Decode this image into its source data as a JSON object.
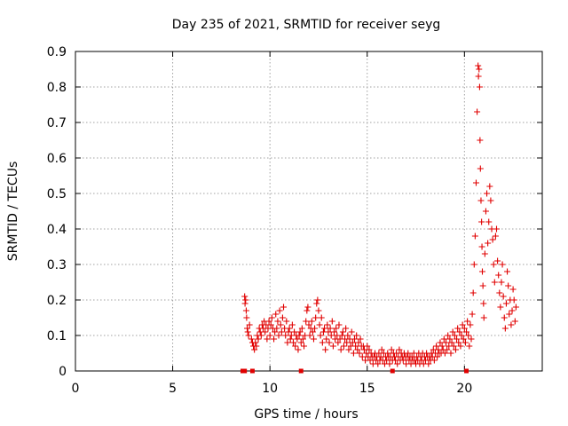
{
  "chart_data": {
    "type": "scatter",
    "title": "Day 235 of 2021, SRMTID for receiver seyg",
    "xlabel": "GPS time / hours",
    "ylabel": "SRMTID / TECUs",
    "xlim": [
      0,
      24
    ],
    "ylim": [
      0,
      0.9
    ],
    "xticks": [
      "0",
      "5",
      "10",
      "15",
      "20"
    ],
    "xtick_values": [
      0,
      5,
      10,
      15,
      20
    ],
    "yticks": [
      "0",
      "0.1",
      "0.2",
      "0.3",
      "0.4",
      "0.5",
      "0.6",
      "0.7",
      "0.8",
      "0.9"
    ],
    "ytick_values": [
      0,
      0.1,
      0.2,
      0.3,
      0.4,
      0.5,
      0.6,
      0.7,
      0.8,
      0.9
    ],
    "grid": true,
    "marker": "plus",
    "color": "#e00000",
    "series": [
      {
        "name": "SRMTID",
        "points": [
          [
            8.7,
            0.21
          ],
          [
            8.72,
            0.19
          ],
          [
            8.75,
            0.2
          ],
          [
            8.78,
            0.17
          ],
          [
            8.8,
            0.15
          ],
          [
            8.83,
            0.12
          ],
          [
            8.86,
            0.11
          ],
          [
            8.9,
            0.1
          ],
          [
            8.95,
            0.13
          ],
          [
            9.05,
            0.09
          ],
          [
            9.1,
            0.08
          ],
          [
            9.15,
            0.07
          ],
          [
            9.2,
            0.06
          ],
          [
            9.25,
            0.08
          ],
          [
            9.3,
            0.07
          ],
          [
            9.35,
            0.1
          ],
          [
            9.4,
            0.09
          ],
          [
            9.45,
            0.12
          ],
          [
            9.5,
            0.11
          ],
          [
            9.55,
            0.1
          ],
          [
            9.6,
            0.13
          ],
          [
            9.65,
            0.12
          ],
          [
            9.7,
            0.14
          ],
          [
            9.75,
            0.11
          ],
          [
            9.8,
            0.13
          ],
          [
            9.85,
            0.09
          ],
          [
            9.9,
            0.12
          ],
          [
            9.95,
            0.14
          ],
          [
            10.0,
            0.1
          ],
          [
            10.05,
            0.13
          ],
          [
            10.1,
            0.15
          ],
          [
            10.15,
            0.12
          ],
          [
            10.2,
            0.09
          ],
          [
            10.25,
            0.11
          ],
          [
            10.3,
            0.16
          ],
          [
            10.35,
            0.12
          ],
          [
            10.4,
            0.14
          ],
          [
            10.45,
            0.1
          ],
          [
            10.5,
            0.17
          ],
          [
            10.55,
            0.13
          ],
          [
            10.6,
            0.11
          ],
          [
            10.65,
            0.15
          ],
          [
            10.7,
            0.18
          ],
          [
            10.75,
            0.12
          ],
          [
            10.8,
            0.1
          ],
          [
            10.85,
            0.14
          ],
          [
            10.9,
            0.08
          ],
          [
            10.95,
            0.11
          ],
          [
            11.0,
            0.12
          ],
          [
            11.05,
            0.09
          ],
          [
            11.1,
            0.1
          ],
          [
            11.15,
            0.13
          ],
          [
            11.2,
            0.08
          ],
          [
            11.25,
            0.11
          ],
          [
            11.3,
            0.07
          ],
          [
            11.35,
            0.1
          ],
          [
            11.4,
            0.09
          ],
          [
            11.45,
            0.06
          ],
          [
            11.5,
            0.1
          ],
          [
            11.55,
            0.11
          ],
          [
            11.6,
            0.08
          ],
          [
            11.65,
            0.12
          ],
          [
            11.7,
            0.09
          ],
          [
            11.75,
            0.07
          ],
          [
            11.8,
            0.1
          ],
          [
            11.85,
            0.14
          ],
          [
            11.9,
            0.17
          ],
          [
            11.95,
            0.18
          ],
          [
            12.0,
            0.13
          ],
          [
            12.05,
            0.1
          ],
          [
            12.1,
            0.12
          ],
          [
            12.15,
            0.14
          ],
          [
            12.2,
            0.11
          ],
          [
            12.25,
            0.09
          ],
          [
            12.3,
            0.12
          ],
          [
            12.35,
            0.15
          ],
          [
            12.4,
            0.19
          ],
          [
            12.45,
            0.2
          ],
          [
            12.5,
            0.17
          ],
          [
            12.55,
            0.13
          ],
          [
            12.6,
            0.1
          ],
          [
            12.65,
            0.15
          ],
          [
            12.7,
            0.08
          ],
          [
            12.75,
            0.11
          ],
          [
            12.8,
            0.12
          ],
          [
            12.85,
            0.06
          ],
          [
            12.9,
            0.09
          ],
          [
            12.95,
            0.13
          ],
          [
            13.0,
            0.11
          ],
          [
            13.05,
            0.08
          ],
          [
            13.1,
            0.12
          ],
          [
            13.15,
            0.1
          ],
          [
            13.2,
            0.14
          ],
          [
            13.25,
            0.07
          ],
          [
            13.3,
            0.11
          ],
          [
            13.35,
            0.09
          ],
          [
            13.4,
            0.12
          ],
          [
            13.45,
            0.1
          ],
          [
            13.5,
            0.08
          ],
          [
            13.55,
            0.13
          ],
          [
            13.6,
            0.09
          ],
          [
            13.65,
            0.06
          ],
          [
            13.7,
            0.1
          ],
          [
            13.75,
            0.11
          ],
          [
            13.8,
            0.07
          ],
          [
            13.85,
            0.09
          ],
          [
            13.9,
            0.12
          ],
          [
            13.95,
            0.08
          ],
          [
            14.0,
            0.1
          ],
          [
            14.05,
            0.06
          ],
          [
            14.1,
            0.09
          ],
          [
            14.15,
            0.07
          ],
          [
            14.2,
            0.11
          ],
          [
            14.25,
            0.08
          ],
          [
            14.3,
            0.05
          ],
          [
            14.35,
            0.09
          ],
          [
            14.4,
            0.07
          ],
          [
            14.45,
            0.1
          ],
          [
            14.5,
            0.06
          ],
          [
            14.55,
            0.08
          ],
          [
            14.6,
            0.05
          ],
          [
            14.65,
            0.09
          ],
          [
            14.7,
            0.07
          ],
          [
            14.75,
            0.04
          ],
          [
            14.8,
            0.07
          ],
          [
            14.85,
            0.06
          ],
          [
            14.9,
            0.03
          ],
          [
            14.95,
            0.05
          ],
          [
            15.0,
            0.07
          ],
          [
            15.05,
            0.04
          ],
          [
            15.1,
            0.06
          ],
          [
            15.15,
            0.03
          ],
          [
            15.2,
            0.05
          ],
          [
            15.25,
            0.04
          ],
          [
            15.3,
            0.02
          ],
          [
            15.35,
            0.04
          ],
          [
            15.4,
            0.05
          ],
          [
            15.45,
            0.03
          ],
          [
            15.5,
            0.04
          ],
          [
            15.55,
            0.02
          ],
          [
            15.6,
            0.05
          ],
          [
            15.65,
            0.03
          ],
          [
            15.7,
            0.04
          ],
          [
            15.75,
            0.06
          ],
          [
            15.8,
            0.03
          ],
          [
            15.85,
            0.05
          ],
          [
            15.9,
            0.02
          ],
          [
            15.95,
            0.04
          ],
          [
            16.0,
            0.03
          ],
          [
            16.05,
            0.05
          ],
          [
            16.1,
            0.04
          ],
          [
            16.15,
            0.02
          ],
          [
            16.2,
            0.04
          ],
          [
            16.25,
            0.06
          ],
          [
            16.3,
            0.03
          ],
          [
            16.35,
            0.05
          ],
          [
            16.4,
            0.04
          ],
          [
            16.45,
            0.03
          ],
          [
            16.5,
            0.05
          ],
          [
            16.55,
            0.02
          ],
          [
            16.6,
            0.04
          ],
          [
            16.65,
            0.06
          ],
          [
            16.7,
            0.03
          ],
          [
            16.75,
            0.05
          ],
          [
            16.8,
            0.04
          ],
          [
            16.85,
            0.03
          ],
          [
            16.9,
            0.05
          ],
          [
            16.95,
            0.04
          ],
          [
            17.0,
            0.02
          ],
          [
            17.05,
            0.04
          ],
          [
            17.1,
            0.05
          ],
          [
            17.15,
            0.03
          ],
          [
            17.2,
            0.04
          ],
          [
            17.25,
            0.02
          ],
          [
            17.3,
            0.04
          ],
          [
            17.35,
            0.03
          ],
          [
            17.4,
            0.05
          ],
          [
            17.45,
            0.03
          ],
          [
            17.5,
            0.02
          ],
          [
            17.55,
            0.04
          ],
          [
            17.6,
            0.03
          ],
          [
            17.65,
            0.05
          ],
          [
            17.7,
            0.02
          ],
          [
            17.75,
            0.04
          ],
          [
            17.8,
            0.03
          ],
          [
            17.85,
            0.05
          ],
          [
            17.9,
            0.02
          ],
          [
            17.95,
            0.04
          ],
          [
            18.0,
            0.03
          ],
          [
            18.05,
            0.05
          ],
          [
            18.1,
            0.04
          ],
          [
            18.15,
            0.02
          ],
          [
            18.2,
            0.04
          ],
          [
            18.25,
            0.03
          ],
          [
            18.3,
            0.05
          ],
          [
            18.35,
            0.04
          ],
          [
            18.4,
            0.06
          ],
          [
            18.45,
            0.03
          ],
          [
            18.5,
            0.05
          ],
          [
            18.55,
            0.07
          ],
          [
            18.6,
            0.04
          ],
          [
            18.65,
            0.06
          ],
          [
            18.7,
            0.05
          ],
          [
            18.75,
            0.08
          ],
          [
            18.8,
            0.05
          ],
          [
            18.85,
            0.07
          ],
          [
            18.9,
            0.06
          ],
          [
            18.95,
            0.09
          ],
          [
            19.0,
            0.05
          ],
          [
            19.05,
            0.08
          ],
          [
            19.1,
            0.06
          ],
          [
            19.15,
            0.1
          ],
          [
            19.2,
            0.07
          ],
          [
            19.25,
            0.09
          ],
          [
            19.3,
            0.05
          ],
          [
            19.35,
            0.08
          ],
          [
            19.4,
            0.11
          ],
          [
            19.45,
            0.07
          ],
          [
            19.5,
            0.1
          ],
          [
            19.55,
            0.06
          ],
          [
            19.6,
            0.09
          ],
          [
            19.65,
            0.12
          ],
          [
            19.7,
            0.08
          ],
          [
            19.75,
            0.11
          ],
          [
            19.8,
            0.07
          ],
          [
            19.85,
            0.1
          ],
          [
            19.9,
            0.13
          ],
          [
            19.95,
            0.09
          ],
          [
            20.0,
            0.12
          ],
          [
            20.05,
            0.08
          ],
          [
            20.1,
            0.11
          ],
          [
            20.15,
            0.14
          ],
          [
            20.2,
            0.1
          ],
          [
            20.25,
            0.07
          ],
          [
            20.3,
            0.13
          ],
          [
            20.35,
            0.09
          ],
          [
            20.4,
            0.16
          ],
          [
            20.45,
            0.22
          ],
          [
            20.5,
            0.3
          ],
          [
            20.55,
            0.38
          ],
          [
            20.6,
            0.53
          ],
          [
            20.65,
            0.73
          ],
          [
            20.7,
            0.86
          ],
          [
            20.72,
            0.83
          ],
          [
            20.75,
            0.85
          ],
          [
            20.78,
            0.8
          ],
          [
            20.8,
            0.65
          ],
          [
            20.82,
            0.57
          ],
          [
            20.85,
            0.48
          ],
          [
            20.88,
            0.42
          ],
          [
            20.9,
            0.35
          ],
          [
            20.92,
            0.28
          ],
          [
            20.95,
            0.24
          ],
          [
            20.98,
            0.19
          ],
          [
            21.0,
            0.15
          ],
          [
            21.05,
            0.33
          ],
          [
            21.1,
            0.45
          ],
          [
            21.15,
            0.5
          ],
          [
            21.2,
            0.36
          ],
          [
            21.25,
            0.42
          ],
          [
            21.3,
            0.52
          ],
          [
            21.35,
            0.48
          ],
          [
            21.4,
            0.4
          ],
          [
            21.45,
            0.37
          ],
          [
            21.5,
            0.3
          ],
          [
            21.55,
            0.25
          ],
          [
            21.6,
            0.38
          ],
          [
            21.65,
            0.4
          ],
          [
            21.7,
            0.31
          ],
          [
            21.75,
            0.27
          ],
          [
            21.8,
            0.22
          ],
          [
            21.85,
            0.18
          ],
          [
            21.9,
            0.25
          ],
          [
            21.95,
            0.3
          ],
          [
            22.0,
            0.21
          ],
          [
            22.05,
            0.15
          ],
          [
            22.1,
            0.12
          ],
          [
            22.15,
            0.19
          ],
          [
            22.2,
            0.28
          ],
          [
            22.25,
            0.24
          ],
          [
            22.3,
            0.16
          ],
          [
            22.35,
            0.2
          ],
          [
            22.4,
            0.13
          ],
          [
            22.45,
            0.17
          ],
          [
            22.5,
            0.23
          ],
          [
            22.55,
            0.2
          ],
          [
            22.6,
            0.14
          ],
          [
            22.65,
            0.18
          ]
        ]
      },
      {
        "name": "data gaps",
        "points": [
          [
            8.6,
            0.0
          ],
          [
            8.7,
            0.0
          ],
          [
            9.1,
            0.0
          ],
          [
            11.6,
            0.0
          ],
          [
            16.3,
            0.0
          ],
          [
            20.1,
            0.0
          ]
        ]
      }
    ]
  }
}
